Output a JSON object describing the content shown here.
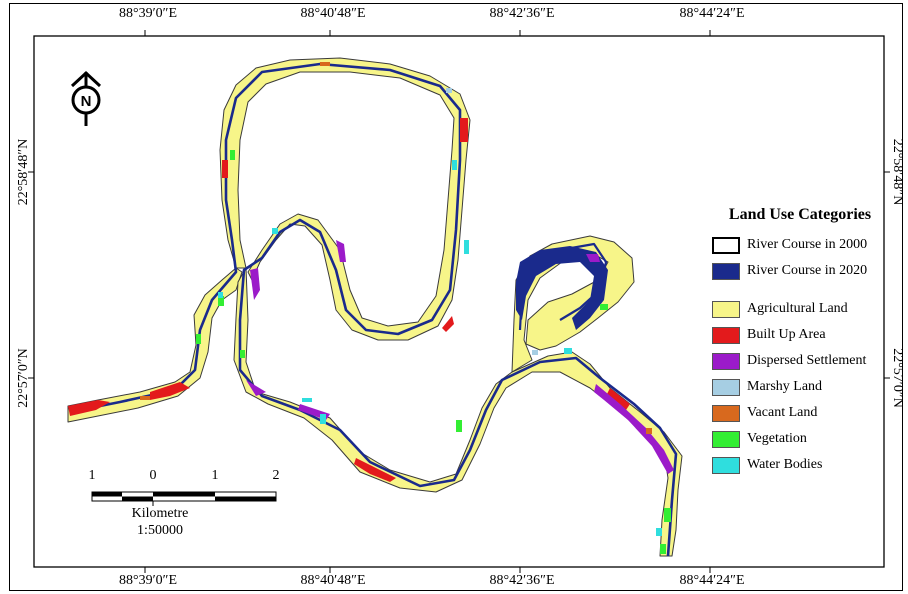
{
  "map": {
    "coords_top": [
      "88°39′0″E",
      "88°40′48″E",
      "88°42′36″E",
      "88°44′24″E"
    ],
    "coords_bottom": [
      "88°39′0″E",
      "88°40′48″E",
      "88°42′36″E",
      "88°44′24″E"
    ],
    "coords_left": [
      "22°58′48″N",
      "22°57′0″N"
    ],
    "coords_right": [
      "22°58′48″N",
      "22°57′0″N"
    ]
  },
  "legend": {
    "title": "Land Use Categories",
    "items": [
      {
        "label": "River Course in 2000",
        "color": "#ffffff"
      },
      {
        "label": "River Course in 2020",
        "color": "#1a2a8c"
      },
      {
        "label": "Agricultural Land",
        "color": "#f7f589"
      },
      {
        "label": "Built Up Area",
        "color": "#e31a1c"
      },
      {
        "label": "Dispersed Settlement",
        "color": "#9b1bc9"
      },
      {
        "label": "Marshy Land",
        "color": "#a6cee3"
      },
      {
        "label": "Vacant Land",
        "color": "#d8691e"
      },
      {
        "label": "Vegetation",
        "color": "#33ee33"
      },
      {
        "label": "Water Bodies",
        "color": "#2fdede"
      }
    ]
  },
  "north_arrow": {
    "letter": "N"
  },
  "scale_bar": {
    "ticks": [
      "1",
      "0",
      "1",
      "2"
    ],
    "unit": "Kilometre",
    "ratio": "1:50000"
  }
}
